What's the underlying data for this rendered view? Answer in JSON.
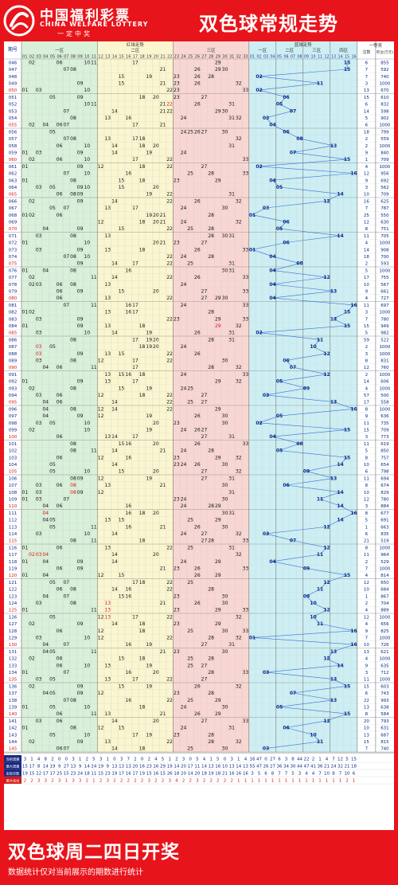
{
  "header": {
    "brand_cn": "中国福利彩票",
    "brand_en": "CHINA WELFARE LOTTERY",
    "slogan": "一定中奖",
    "title": "双色球常规走势"
  },
  "footer": {
    "title": "双色球周二四日开奖",
    "note": "数据统计仅对当前展示的期数进行统计"
  },
  "colors": {
    "page_bg": "#e8141b",
    "zone1_bg": "#d9f0d9",
    "zone2_bg": "#fbf6cf",
    "zone3_bg": "#f9d6d2",
    "blue_bg": "#cdeff3",
    "blue_line": "#3a6fd8",
    "hot_red": "#d81818"
  },
  "chart_data": {
    "type": "table",
    "headers": {
      "period": "期号",
      "red_section": "红球走势",
      "red_zones": [
        "一区",
        "二区",
        "三区"
      ],
      "blue_section": "蓝球走势",
      "blue_zones": [
        "一区",
        "二区",
        "三区",
        "四区"
      ],
      "prize_section": "一等奖",
      "prize_count": "注数",
      "prize_amount": "单注(万元)"
    },
    "periods": [
      "046",
      "047",
      "048",
      "049",
      "050",
      "051",
      "052",
      "053",
      "054",
      "055",
      "056",
      "057",
      "058",
      "059",
      "060",
      "061",
      "062",
      "063",
      "064",
      "065",
      "066",
      "067",
      "068",
      "069",
      "070",
      "071",
      "072",
      "073",
      "074",
      "075",
      "076",
      "077",
      "078",
      "079",
      "080",
      "081",
      "082",
      "083",
      "084",
      "085",
      "086",
      "087",
      "088",
      "089",
      "090",
      "091",
      "092",
      "093",
      "094",
      "095",
      "096",
      "097",
      "098",
      "099",
      "100",
      "101",
      "102",
      "103",
      "104",
      "105",
      "106",
      "107",
      "108",
      "109",
      "110",
      "111",
      "112",
      "113",
      "114",
      "115",
      "116",
      "117",
      "118",
      "119",
      "120",
      "121",
      "122",
      "123",
      "124",
      "125",
      "126",
      "127",
      "128",
      "129",
      "130",
      "131",
      "132",
      "133",
      "134",
      "135",
      "136",
      "137",
      "138",
      "139",
      "140",
      "141",
      "142",
      "143",
      "144",
      "145"
    ],
    "red_balls": [
      [
        2,
        6,
        10,
        11,
        17,
        29
      ],
      [
        7,
        8,
        21,
        26,
        29,
        30
      ],
      [
        15,
        19,
        23,
        26,
        28
      ],
      [
        9,
        15,
        21,
        23,
        26,
        32
      ],
      [
        1,
        3,
        10,
        22,
        23,
        33
      ],
      [
        5,
        9,
        18,
        20,
        23,
        27
      ],
      [
        10,
        11,
        21,
        22,
        26,
        31
      ],
      [
        7,
        14,
        21,
        22,
        29,
        30
      ],
      [
        8,
        13,
        16,
        24,
        31,
        32
      ],
      [
        2,
        4,
        6,
        7,
        17,
        21
      ],
      [
        5,
        24,
        25,
        26,
        27,
        30
      ],
      [
        7,
        8,
        13,
        17,
        18,
        32
      ],
      [
        6,
        10,
        14,
        18,
        20,
        31
      ],
      [
        1,
        3,
        9,
        14,
        19,
        24
      ],
      [
        2,
        6,
        10,
        17,
        22,
        33
      ],
      [
        1,
        9,
        12,
        18,
        22,
        27
      ],
      [
        7,
        10,
        16,
        25,
        28,
        33
      ],
      [
        1,
        8,
        15,
        18,
        23,
        29
      ],
      [
        3,
        5,
        9,
        10,
        15,
        20
      ],
      [
        6,
        8,
        9,
        19,
        22,
        31
      ],
      [
        2,
        9,
        14,
        22,
        26,
        32
      ],
      [
        5,
        7,
        13,
        17,
        24,
        30
      ],
      [
        1,
        2,
        6,
        19,
        20,
        21,
        28
      ],
      [
        12,
        18,
        20,
        21,
        24,
        32
      ],
      [
        4,
        9,
        15,
        22,
        25,
        28
      ],
      [
        3,
        8,
        13,
        28,
        30,
        31
      ],
      [
        1,
        10,
        20,
        21,
        23,
        27
      ],
      [
        3,
        9,
        13,
        18,
        26,
        33
      ],
      [
        7,
        8,
        10,
        22,
        24,
        28
      ],
      [
        9,
        14,
        17,
        22,
        25,
        31
      ],
      [
        1,
        4,
        8,
        16,
        30,
        31
      ],
      [
        2,
        11,
        14,
        22,
        26,
        33
      ],
      [
        2,
        3,
        6,
        8,
        13,
        24
      ],
      [
        6,
        9,
        15,
        20,
        27,
        33
      ],
      [
        6,
        13,
        22,
        27,
        29,
        30
      ],
      [
        7,
        11,
        16,
        17,
        24,
        33
      ],
      [
        1,
        2,
        13,
        16,
        17,
        28
      ],
      [
        3,
        9,
        22,
        23,
        29,
        33
      ],
      [
        1,
        9,
        13,
        18,
        29,
        32
      ],
      [
        3,
        10,
        14,
        19,
        26,
        31
      ],
      [
        8,
        17,
        19,
        20,
        28,
        31
      ],
      [
        3,
        5,
        18,
        19,
        20,
        24
      ],
      [
        3,
        9,
        13,
        15,
        22,
        26
      ],
      [
        3,
        8,
        12,
        17,
        22,
        30
      ],
      [
        4,
        6,
        11,
        17,
        28,
        32
      ],
      [
        13,
        15,
        16,
        18,
        24,
        33
      ],
      [
        1,
        9,
        13,
        17,
        29,
        32
      ],
      [
        2,
        8,
        15,
        19,
        24,
        25
      ],
      [
        3,
        6,
        12,
        18,
        22,
        27
      ],
      [
        4,
        6,
        14,
        22,
        25,
        27
      ],
      [
        4,
        8,
        12,
        14,
        22,
        29
      ],
      [
        4,
        9,
        12,
        19,
        26,
        30
      ],
      [
        3,
        5,
        10,
        20,
        23,
        30
      ],
      [
        2,
        10,
        19,
        24,
        26,
        27
      ],
      [
        6,
        13,
        14,
        17,
        27,
        31
      ],
      [
        8,
        15,
        16,
        20,
        26,
        33
      ],
      [
        8,
        11,
        14,
        21,
        24,
        28
      ],
      [
        6,
        12,
        16,
        23,
        29,
        32
      ],
      [
        5,
        14,
        23,
        24,
        26,
        30
      ],
      [
        5,
        10,
        15,
        20,
        27,
        32
      ],
      [
        8,
        9,
        12,
        19,
        27,
        31
      ],
      [
        3,
        6,
        8,
        13,
        21,
        30
      ],
      [
        1,
        3,
        8,
        9,
        12,
        31
      ],
      [
        1,
        3,
        7,
        23,
        24,
        30
      ],
      [
        4,
        6,
        16,
        24,
        28,
        29
      ],
      [
        4,
        16,
        18,
        20,
        30,
        31
      ],
      [
        4,
        5,
        13,
        15,
        25,
        29
      ],
      [
        5,
        11,
        16,
        21,
        26,
        30
      ],
      [
        3,
        10,
        14,
        24,
        27,
        32
      ],
      [
        8,
        11,
        18,
        27,
        28,
        33
      ],
      [
        1,
        6,
        13,
        22,
        25,
        31
      ],
      [
        2,
        3,
        4,
        14,
        20,
        32
      ],
      [
        1,
        4,
        9,
        14,
        24,
        29
      ],
      [
        6,
        9,
        21,
        23,
        26,
        33
      ],
      [
        1,
        4,
        12,
        15,
        26,
        29
      ],
      [
        5,
        7,
        17,
        18,
        22,
        25
      ],
      [
        6,
        8,
        14,
        16,
        22,
        28
      ],
      [
        4,
        7,
        15,
        16,
        23,
        30
      ],
      [
        3,
        8,
        13,
        21,
        26,
        30
      ],
      [
        1,
        11,
        13,
        23,
        29,
        33
      ],
      [
        5,
        12,
        13,
        17,
        22,
        32
      ],
      [
        2,
        9,
        14,
        18,
        23,
        29
      ],
      [
        6,
        12,
        18,
        25,
        30,
        33
      ],
      [
        3,
        10,
        12,
        22,
        28,
        32
      ],
      [
        4,
        7,
        16,
        19,
        27,
        31
      ],
      [
        4,
        5,
        11,
        21,
        23,
        30
      ],
      [
        2,
        6,
        15,
        18,
        25,
        28
      ],
      [
        6,
        10,
        13,
        19,
        25,
        27
      ],
      [
        1,
        7,
        16,
        20,
        28,
        33
      ],
      [
        3,
        5,
        13,
        17,
        22,
        27
      ],
      [
        2,
        9,
        15,
        19,
        26,
        32
      ],
      [
        4,
        5,
        9,
        12,
        23,
        28
      ],
      [
        7,
        8,
        16,
        22,
        25,
        29
      ],
      [
        1,
        5,
        10,
        18,
        24,
        30
      ],
      [
        6,
        11,
        13,
        21,
        26,
        29
      ],
      [
        3,
        6,
        14,
        20,
        27,
        33
      ],
      [
        1,
        8,
        12,
        15,
        24,
        31
      ],
      [
        5,
        10,
        17,
        19,
        23,
        28
      ],
      [
        2,
        9,
        13,
        22,
        28,
        32
      ],
      [
        6,
        7,
        14,
        18,
        25,
        30
      ]
    ],
    "blue_balls": [
      15,
      15,
      2,
      11,
      2,
      6,
      5,
      7,
      3,
      4,
      6,
      8,
      13,
      7,
      15,
      2,
      16,
      4,
      5,
      14,
      12,
      3,
      1,
      6,
      5,
      14,
      6,
      1,
      4,
      8,
      4,
      12,
      4,
      13,
      4,
      16,
      15,
      13,
      15,
      2,
      11,
      10,
      12,
      6,
      7,
      12,
      5,
      9,
      3,
      13,
      16,
      5,
      2,
      15,
      4,
      8,
      5,
      15,
      14,
      9,
      13,
      6,
      14,
      11,
      14,
      16,
      14,
      12,
      3,
      7,
      12,
      11,
      4,
      9,
      15,
      12,
      11,
      9,
      10,
      12,
      10,
      11,
      16,
      1,
      16,
      13,
      12,
      14,
      3,
      13,
      15,
      7,
      13,
      5,
      15,
      12,
      6,
      10,
      11,
      3
    ],
    "prize_counts": [
      6,
      7,
      7,
      3,
      13,
      15,
      6,
      14,
      5,
      6,
      18,
      2,
      2,
      9,
      1,
      4,
      12,
      9,
      3,
      10,
      16,
      7,
      25,
      12,
      8,
      11,
      4,
      14,
      18,
      2,
      5,
      17,
      10,
      9,
      4,
      11,
      3,
      7,
      15,
      5,
      59,
      2,
      3,
      8,
      12,
      2,
      14,
      4,
      57,
      17,
      8,
      9,
      11,
      15,
      3,
      11,
      5,
      8,
      10,
      6,
      11,
      8,
      10,
      12,
      3,
      8,
      5,
      1,
      6,
      21,
      8,
      11,
      2,
      7,
      4,
      12,
      10,
      1,
      2,
      4,
      12,
      4,
      9,
      7,
      10,
      13,
      4,
      9,
      3,
      11,
      15,
      6,
      22,
      13,
      8,
      20,
      10,
      13,
      15,
      7
    ],
    "prize_amounts": [
      855,
      592,
      740,
      1000,
      670,
      610,
      832,
      598,
      902,
      1000,
      799,
      559,
      1000,
      840,
      709,
      1000,
      956,
      692,
      562,
      709,
      625,
      787,
      550,
      630,
      751,
      705,
      1000,
      908,
      700,
      593,
      1000,
      755,
      567,
      661,
      727,
      697,
      1000,
      780,
      949,
      982,
      522,
      1000,
      1000,
      831,
      760,
      1000,
      606,
      1000,
      500,
      558,
      1000,
      636,
      735,
      709,
      773,
      619,
      850,
      757,
      654,
      798,
      694,
      674,
      829,
      780,
      884,
      677,
      691,
      663,
      835,
      519,
      1000,
      964,
      529,
      1000,
      814,
      650,
      684,
      867,
      704,
      889,
      1000,
      656,
      825,
      1000,
      726,
      621,
      1000,
      635,
      712,
      1000,
      603,
      743,
      993,
      638,
      584,
      793,
      631,
      687,
      815,
      740
    ],
    "stats": {
      "labels": [
        "当前遗漏",
        "最大遗漏",
        "出现次数",
        "最大连出"
      ]
    }
  }
}
